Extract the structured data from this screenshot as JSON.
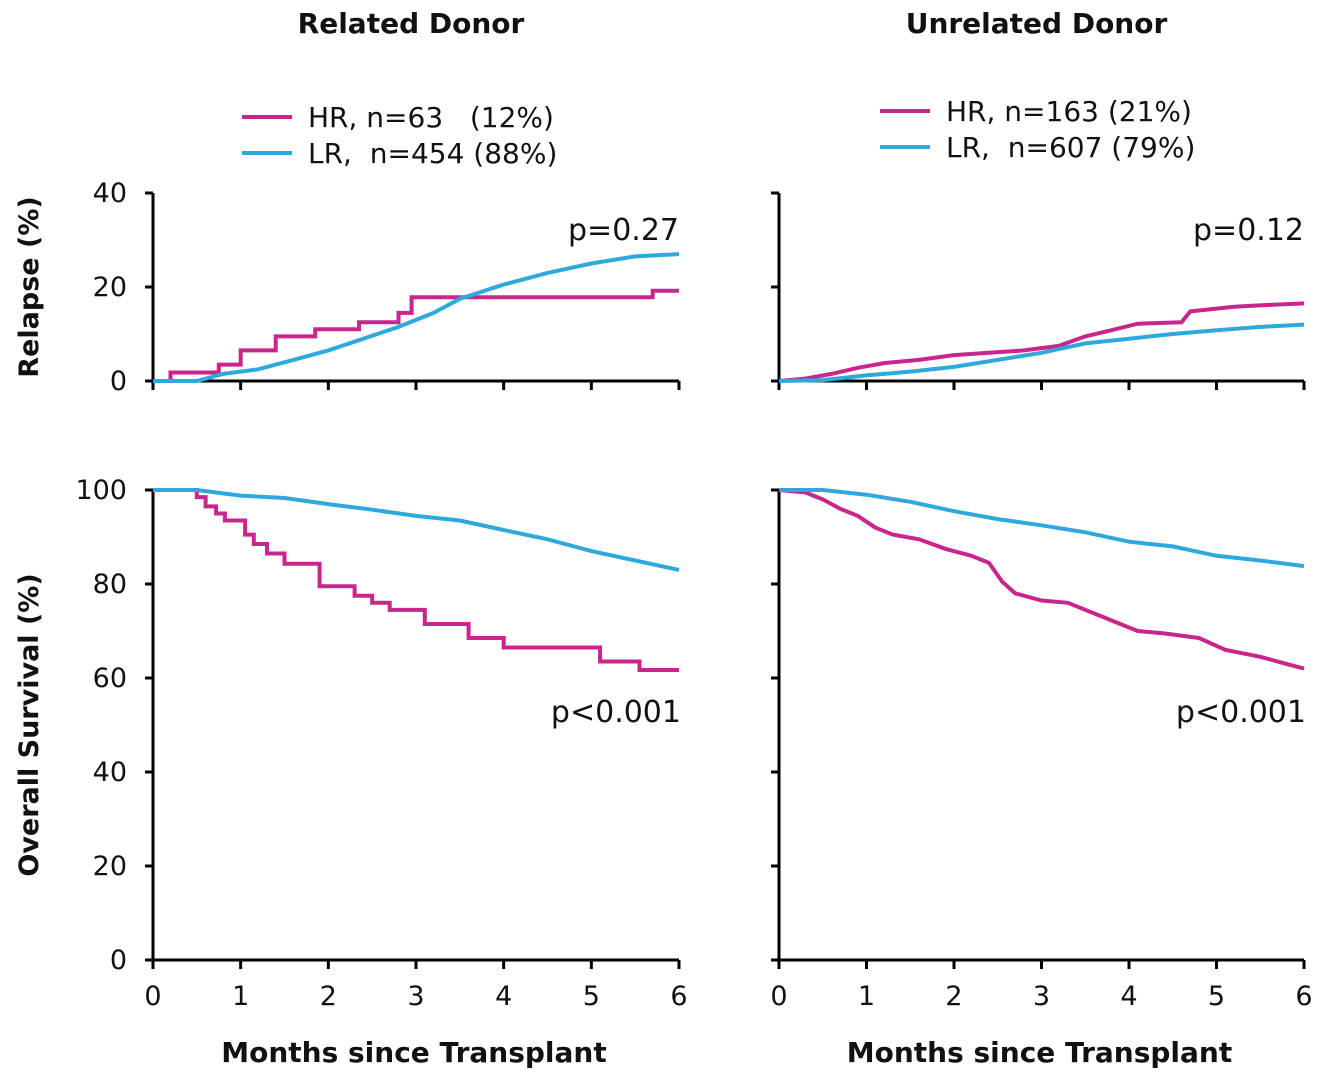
{
  "chart_data": [
    {
      "type": "line",
      "panel": "related-relapse",
      "title": "Related Donor",
      "xlabel": "",
      "ylabel": "Relapse (%)",
      "xlim": [
        0,
        6
      ],
      "ylim": [
        0,
        40
      ],
      "yticks": [
        0,
        20,
        40
      ],
      "xticks": [
        0,
        1,
        2,
        3,
        4,
        5,
        6
      ],
      "legend_position": "top-center",
      "annotation": "p=0.27",
      "series": [
        {
          "name": "HR, n=63   (12%)",
          "color": "#c8258d",
          "x": [
            0,
            0.2,
            0.2,
            0.75,
            0.75,
            1.0,
            1.0,
            1.4,
            1.4,
            1.85,
            1.85,
            2.35,
            2.35,
            2.8,
            2.8,
            2.95,
            2.95,
            5.7,
            5.7,
            6.0
          ],
          "y": [
            0,
            0,
            1.8,
            1.8,
            3.5,
            3.5,
            6.5,
            6.5,
            9.5,
            9.5,
            11,
            11,
            12.5,
            12.5,
            14.5,
            14.5,
            17.8,
            17.8,
            19.2,
            19.2
          ]
        },
        {
          "name": "LR,  n=454 (88%)",
          "color": "#2fa8dc",
          "x": [
            0,
            0.5,
            0.8,
            1.2,
            1.6,
            2.0,
            2.4,
            2.8,
            3.2,
            3.5,
            4.0,
            4.5,
            5.0,
            5.5,
            6.0
          ],
          "y": [
            0,
            0,
            1.5,
            2.5,
            4.5,
            6.5,
            9,
            11.5,
            14.5,
            17.5,
            20.5,
            23,
            25,
            26.5,
            27
          ]
        }
      ]
    },
    {
      "type": "line",
      "panel": "unrelated-relapse",
      "title": "Unrelated Donor",
      "xlabel": "",
      "ylabel": "",
      "xlim": [
        0,
        6
      ],
      "ylim": [
        0,
        40
      ],
      "yticks": [
        0,
        20,
        40
      ],
      "xticks": [
        0,
        1,
        2,
        3,
        4,
        5,
        6
      ],
      "legend_position": "top-center",
      "annotation": "p=0.12",
      "series": [
        {
          "name": "HR, n=163 (21%)",
          "color": "#c8258d",
          "x": [
            0,
            0.3,
            0.6,
            0.9,
            1.2,
            1.6,
            2.0,
            2.4,
            2.8,
            3.2,
            3.5,
            3.8,
            4.1,
            4.6,
            4.7,
            5.2,
            5.6,
            6.0
          ],
          "y": [
            0,
            0.5,
            1.5,
            2.8,
            3.8,
            4.5,
            5.5,
            6.0,
            6.5,
            7.5,
            9.5,
            10.8,
            12.2,
            12.5,
            14.8,
            15.8,
            16.2,
            16.5
          ]
        },
        {
          "name": "LR,  n=607 (79%)",
          "color": "#2fa8dc",
          "x": [
            0,
            0.5,
            1.0,
            1.5,
            2.0,
            2.5,
            3.0,
            3.5,
            4.0,
            4.5,
            5.0,
            5.5,
            6.0
          ],
          "y": [
            0,
            0.2,
            1.2,
            2.0,
            3.0,
            4.5,
            6.0,
            8.0,
            9.0,
            10.0,
            10.8,
            11.5,
            12.0
          ]
        }
      ]
    },
    {
      "type": "line",
      "panel": "related-survival",
      "title": "",
      "xlabel": "Months since Transplant",
      "ylabel": "Overall Survival (%)",
      "xlim": [
        0,
        6
      ],
      "ylim": [
        0,
        100
      ],
      "yticks": [
        0,
        20,
        40,
        60,
        80,
        100
      ],
      "xticks": [
        0,
        1,
        2,
        3,
        4,
        5,
        6
      ],
      "annotation": "p<0.001",
      "series": [
        {
          "name": "HR",
          "color": "#c8258d",
          "x": [
            0,
            0.5,
            0.5,
            0.6,
            0.6,
            0.72,
            0.72,
            0.82,
            0.82,
            1.05,
            1.05,
            1.15,
            1.15,
            1.3,
            1.3,
            1.5,
            1.5,
            1.9,
            1.9,
            2.3,
            2.3,
            2.5,
            2.5,
            2.7,
            2.7,
            3.1,
            3.1,
            3.6,
            3.6,
            4.0,
            4.0,
            5.1,
            5.1,
            5.55,
            5.55,
            6.0
          ],
          "y": [
            100,
            100,
            98.5,
            98.5,
            96.5,
            96.5,
            95,
            95,
            93.5,
            93.5,
            90.5,
            90.5,
            88.5,
            88.5,
            86.5,
            86.5,
            84.3,
            84.3,
            79.5,
            79.5,
            77.5,
            77.5,
            76,
            76,
            74.5,
            74.5,
            71.5,
            71.5,
            68.5,
            68.5,
            66.5,
            66.5,
            63.5,
            63.5,
            61.7,
            61.7
          ]
        },
        {
          "name": "LR",
          "color": "#2fa8dc",
          "x": [
            0,
            0.5,
            1.0,
            1.5,
            2.0,
            2.5,
            3.0,
            3.5,
            4.0,
            4.5,
            5.0,
            5.5,
            6.0
          ],
          "y": [
            100,
            100,
            98.8,
            98.3,
            97,
            95.8,
            94.5,
            93.5,
            91.5,
            89.5,
            87,
            85,
            83
          ]
        }
      ]
    },
    {
      "type": "line",
      "panel": "unrelated-survival",
      "title": "",
      "xlabel": "Months since Transplant",
      "ylabel": "",
      "xlim": [
        0,
        6
      ],
      "ylim": [
        0,
        100
      ],
      "yticks": [
        0,
        20,
        40,
        60,
        80,
        100
      ],
      "xticks": [
        0,
        1,
        2,
        3,
        4,
        5,
        6
      ],
      "annotation": "p<0.001",
      "series": [
        {
          "name": "HR",
          "color": "#c8258d",
          "x": [
            0,
            0.3,
            0.5,
            0.7,
            0.9,
            1.1,
            1.3,
            1.6,
            1.9,
            2.2,
            2.4,
            2.55,
            2.7,
            3.0,
            3.3,
            3.7,
            3.9,
            4.1,
            4.4,
            4.8,
            5.1,
            5.5,
            5.8,
            6.0
          ],
          "y": [
            100,
            99.5,
            98,
            96,
            94.5,
            92,
            90.5,
            89.5,
            87.5,
            86,
            84.5,
            80.5,
            78,
            76.5,
            76,
            73,
            71.5,
            70,
            69.5,
            68.5,
            66,
            64.5,
            63,
            62
          ]
        },
        {
          "name": "LR",
          "color": "#2fa8dc",
          "x": [
            0,
            0.5,
            1.0,
            1.5,
            2.0,
            2.5,
            3.0,
            3.5,
            4.0,
            4.5,
            5.0,
            5.5,
            6.0
          ],
          "y": [
            100,
            100,
            99,
            97.5,
            95.5,
            93.8,
            92.5,
            91,
            89,
            88,
            86,
            85,
            83.8
          ]
        }
      ]
    }
  ]
}
